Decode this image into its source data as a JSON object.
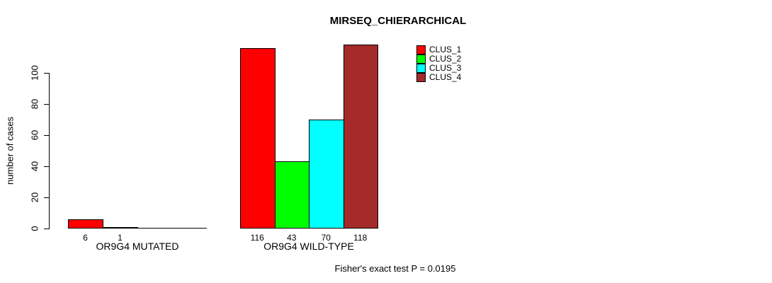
{
  "chart_data": {
    "type": "bar",
    "title": "MIRSEQ_CHIERARCHICAL",
    "ylabel": "number of cases",
    "xlabel": "",
    "yticks": [
      0,
      20,
      40,
      60,
      80,
      100
    ],
    "ylim": [
      0,
      118
    ],
    "grid": false,
    "series": [
      {
        "name": "CLUS_1",
        "color": "#FF0000"
      },
      {
        "name": "CLUS_2",
        "color": "#00FF00"
      },
      {
        "name": "CLUS_3",
        "color": "#00FFFF"
      },
      {
        "name": "CLUS_4",
        "color": "#A52A2A"
      }
    ],
    "groups": [
      {
        "label": "OR9G4 MUTATED",
        "values": [
          6,
          1,
          0,
          0
        ],
        "bar_labels": [
          "6",
          "1",
          "",
          ""
        ]
      },
      {
        "label": "OR9G4 WILD-TYPE",
        "values": [
          116,
          43,
          70,
          118
        ],
        "bar_labels": [
          "116",
          "43",
          "70",
          "118"
        ]
      }
    ],
    "legend": {
      "position": "top-right",
      "entries": [
        "CLUS_1",
        "CLUS_2",
        "CLUS_3",
        "CLUS_4"
      ]
    },
    "footer": "Fisher's exact test P = 0.0195"
  }
}
